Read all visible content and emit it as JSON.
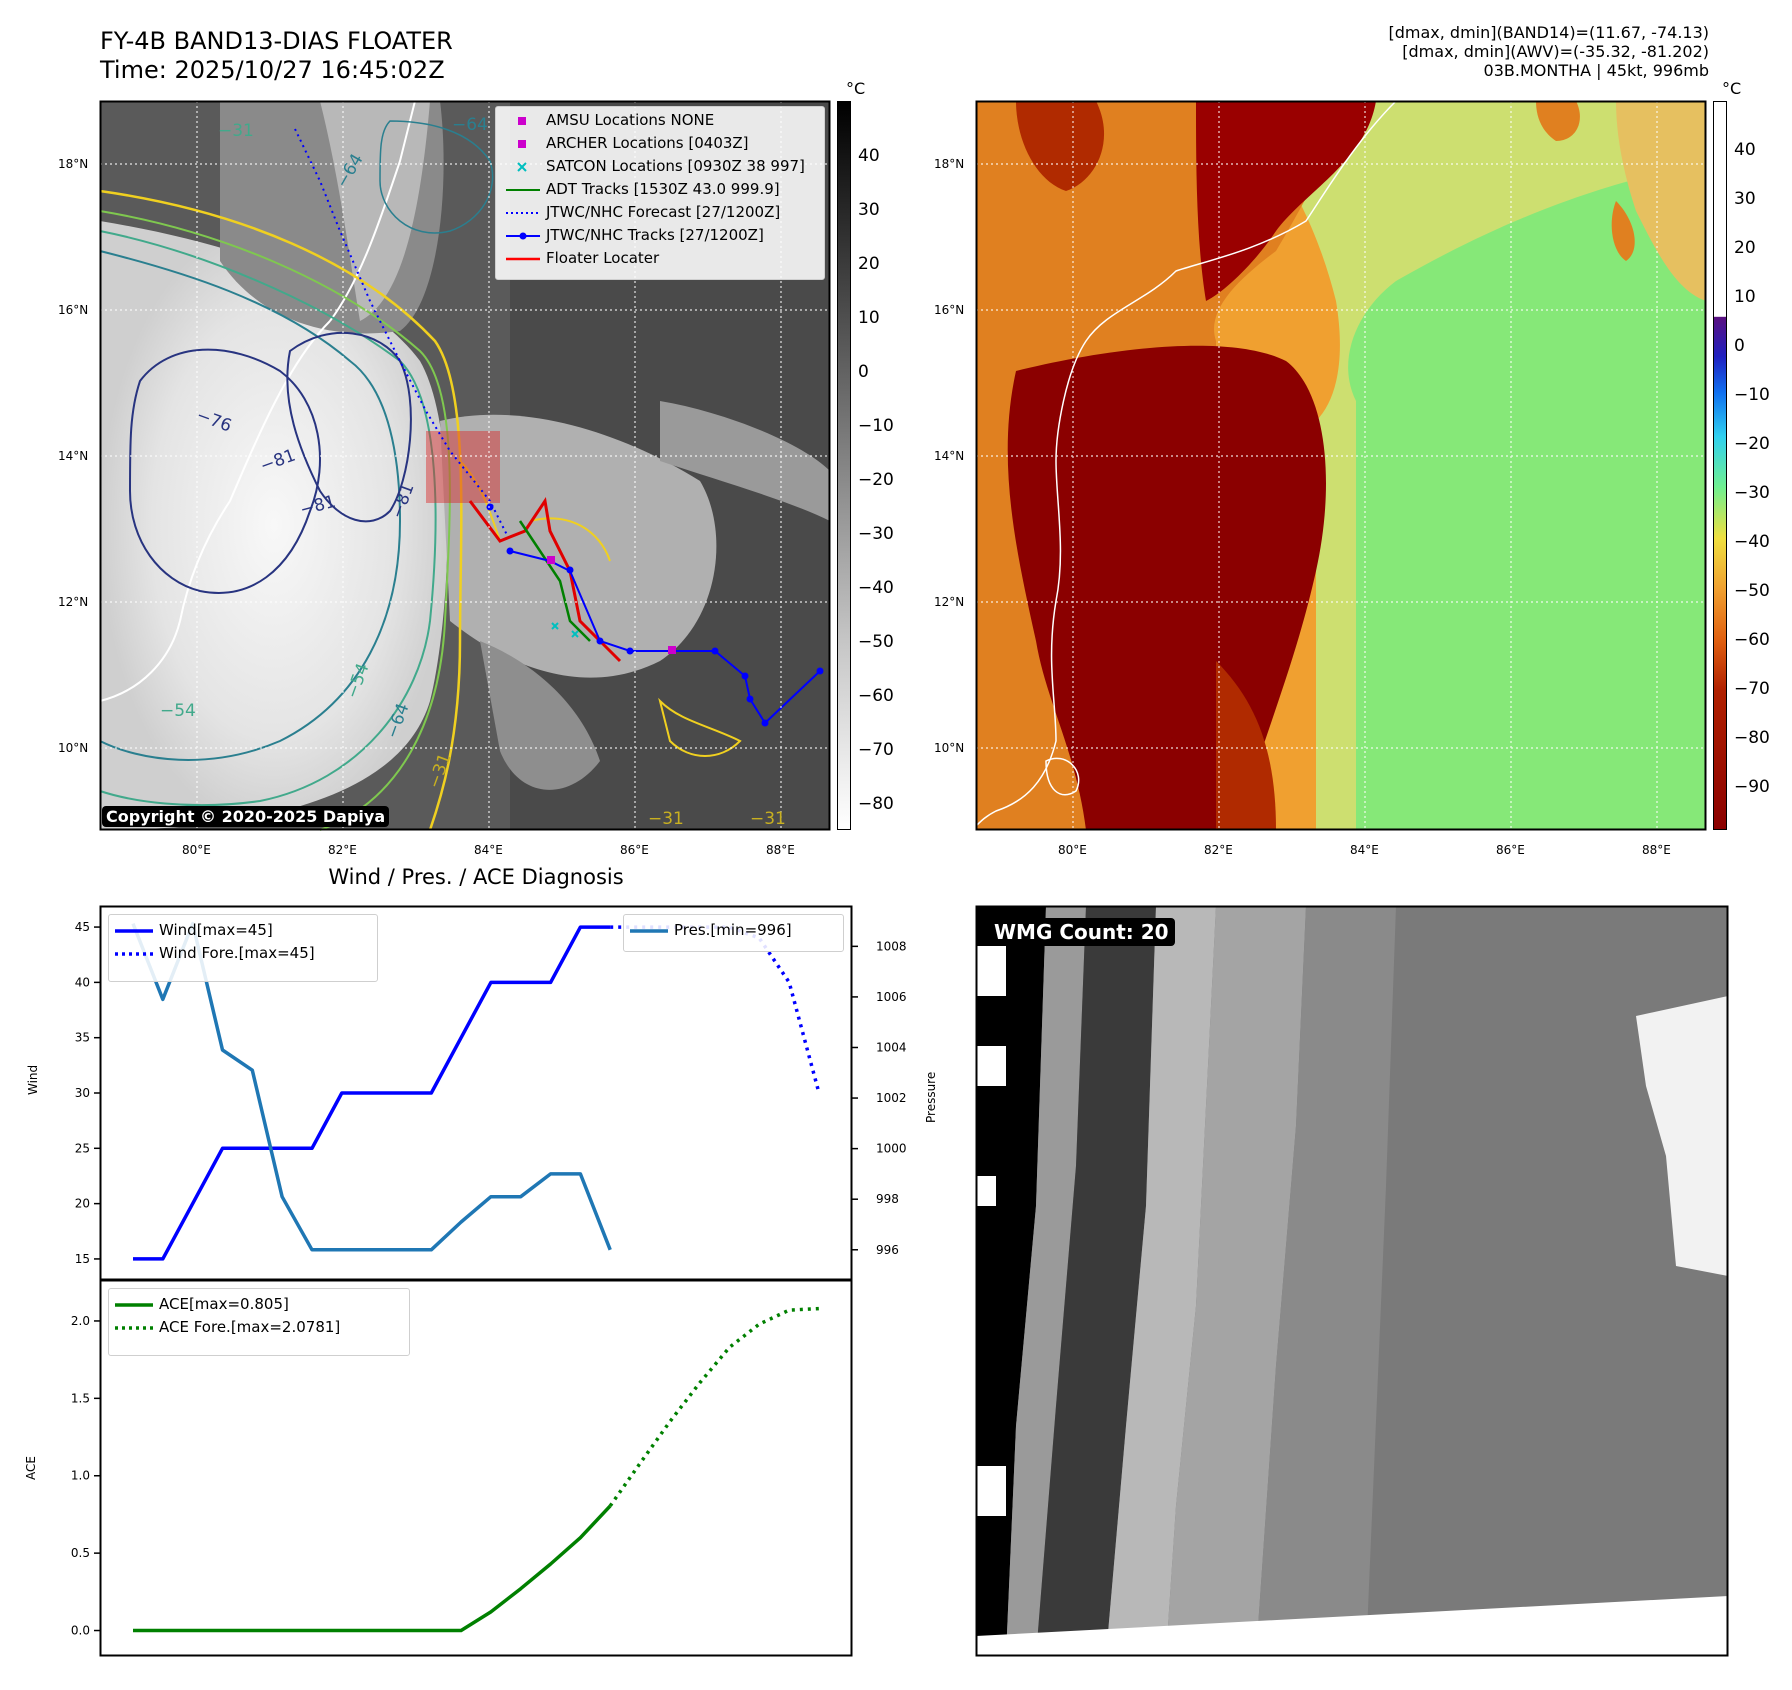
{
  "header": {
    "title": "FY-4B BAND13-DIAS FLOATER",
    "time": "Time: 2025/10/27 16:45:02Z",
    "info_lines": [
      "[dmax, dmin](BAND14)=(11.67, -74.13)",
      "[dmax, dmin](AWV)=(-35.32, -81.202)",
      "03B.MONTHA | 45kt, 996mb"
    ]
  },
  "map_panel": {
    "copyright": "Copyright © 2020-2025 Dapiya",
    "colorbar_unit": "°C",
    "colorbar_ticks": [
      "40",
      "30",
      "20",
      "10",
      "0",
      "−10",
      "−20",
      "−30",
      "−40",
      "−50",
      "−60",
      "−70",
      "−80"
    ],
    "lon_ticks": [
      "80°E",
      "82°E",
      "84°E",
      "86°E",
      "88°E"
    ],
    "lat_ticks": [
      "18°N",
      "16°N",
      "14°N",
      "12°N",
      "10°N"
    ],
    "contour_labels": [
      "−64",
      "−64",
      "−31",
      "−76",
      "−81",
      "−81",
      "−81",
      "−54",
      "−54",
      "−64",
      "−31",
      "−31",
      "−31"
    ],
    "legend": [
      {
        "label": "AMSU Locations NONE",
        "color": "#cc00cc",
        "marker": "square"
      },
      {
        "label": "ARCHER Locations [0403Z]",
        "color": "#cc00cc",
        "marker": "square"
      },
      {
        "label": "SATCON Locations [0930Z 38 997]",
        "color": "#00bfbf",
        "marker": "x"
      },
      {
        "label": "ADT Tracks [1530Z 43.0 999.9]",
        "color": "#008000",
        "marker": "line"
      },
      {
        "label": "JTWC/NHC Forecast [27/1200Z]",
        "color": "#0000ff",
        "marker": "dotted"
      },
      {
        "label": "JTWC/NHC Tracks [27/1200Z]",
        "color": "#0000ff",
        "marker": "line-dot"
      },
      {
        "label": "Floater Locater",
        "color": "#ff0000",
        "marker": "line"
      }
    ]
  },
  "awv_panel": {
    "colorbar_unit": "°C",
    "colorbar_ticks": [
      "40",
      "30",
      "20",
      "10",
      "0",
      "−10",
      "−20",
      "−30",
      "−40",
      "−50",
      "−60",
      "−70",
      "−80",
      "−90"
    ],
    "lon_ticks": [
      "80°E",
      "82°E",
      "84°E",
      "86°E",
      "88°E"
    ],
    "lat_ticks": [
      "18°N",
      "16°N",
      "14°N",
      "12°N",
      "10°N"
    ]
  },
  "wmg_panel": {
    "label": "WMG Count: 20"
  },
  "chart_data": [
    {
      "type": "line",
      "title": "Wind / Pres. / ACE Diagnosis",
      "ylabel": "Wind",
      "ylabel_right": "Pressure",
      "ylim": [
        14,
        46
      ],
      "ylim_right": [
        995.2,
        1009.2
      ],
      "x": [
        0,
        1,
        2,
        3,
        4,
        5,
        6,
        7,
        8,
        9,
        10,
        11,
        12,
        13,
        14,
        15,
        16,
        17,
        18,
        19,
        20,
        21,
        22,
        23
      ],
      "yticks": [
        "45",
        "40",
        "35",
        "30",
        "25",
        "20",
        "15"
      ],
      "yticks_right": [
        "1008",
        "1006",
        "1004",
        "1002",
        "1000",
        "998",
        "996"
      ],
      "series": [
        {
          "name": "Wind[max=45]",
          "color": "#0000ff",
          "style": "solid",
          "axis": "left",
          "x": [
            0,
            1,
            2,
            3,
            4,
            5,
            6,
            7,
            8,
            9,
            10,
            11,
            12,
            13,
            14,
            15,
            16
          ],
          "values": [
            15,
            15,
            20,
            25,
            25,
            25,
            25,
            30,
            30,
            30,
            30,
            35,
            40,
            40,
            40,
            45,
            45
          ]
        },
        {
          "name": "Wind Fore.[max=45]",
          "color": "#0000ff",
          "style": "dotted",
          "axis": "left",
          "x": [
            16,
            17,
            18,
            19,
            20,
            21,
            22,
            23
          ],
          "values": [
            45,
            45,
            45,
            45,
            45,
            44,
            40,
            30
          ]
        },
        {
          "name": "Pres.[min=996]",
          "color": "#1f77b4",
          "style": "solid",
          "axis": "right",
          "x": [
            0,
            1,
            2,
            3,
            4,
            5,
            6,
            7,
            8,
            9,
            10,
            11,
            12,
            13,
            14,
            15,
            16
          ],
          "values": [
            1008.9,
            1005.9,
            1008.9,
            1003.9,
            1003.1,
            998.1,
            996,
            996,
            996,
            996,
            996,
            997.1,
            998.1,
            998.1,
            999,
            999,
            996
          ]
        }
      ]
    },
    {
      "type": "line",
      "ylabel": "ACE",
      "ylim": [
        -0.1,
        2.2
      ],
      "yticks": [
        "2.0",
        "1.5",
        "1.0",
        "0.5",
        "0.0"
      ],
      "x": [
        0,
        1,
        2,
        3,
        4,
        5,
        6,
        7,
        8,
        9,
        10,
        11,
        12,
        13,
        14,
        15,
        16,
        17,
        18,
        19,
        20,
        21,
        22,
        23
      ],
      "series": [
        {
          "name": "ACE[max=0.805]",
          "color": "#008000",
          "style": "solid",
          "x": [
            0,
            1,
            2,
            3,
            4,
            5,
            6,
            7,
            8,
            9,
            10,
            11,
            12,
            13,
            14,
            15,
            16
          ],
          "values": [
            0,
            0,
            0,
            0,
            0,
            0,
            0,
            0,
            0,
            0,
            0,
            0,
            0.12,
            0.27,
            0.43,
            0.6,
            0.805
          ]
        },
        {
          "name": "ACE Fore.[max=2.0781]",
          "color": "#008000",
          "style": "dotted",
          "x": [
            16,
            17,
            18,
            19,
            20,
            21,
            22,
            23
          ],
          "values": [
            0.805,
            1.08,
            1.35,
            1.6,
            1.83,
            1.98,
            2.07,
            2.08
          ]
        }
      ]
    }
  ]
}
